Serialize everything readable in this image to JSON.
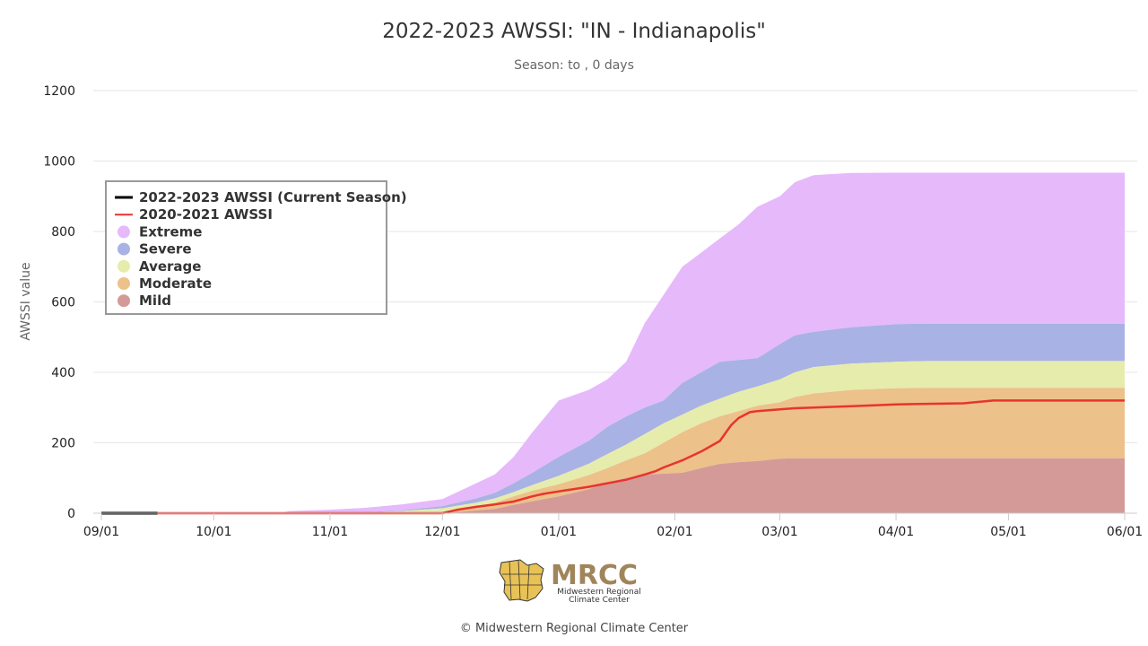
{
  "chart_data": {
    "type": "area",
    "title": "2022-2023 AWSSI: \"IN - Indianapolis\"",
    "subtitle": "Season: to , 0 days",
    "ylabel": "AWSSI value",
    "xlabel": "",
    "x_ticks": [
      "09/01",
      "10/01",
      "11/01",
      "12/01",
      "01/01",
      "02/01",
      "03/01",
      "04/01",
      "05/01",
      "06/01"
    ],
    "x_tick_days": [
      0,
      30,
      61,
      91,
      122,
      153,
      181,
      212,
      242,
      273
    ],
    "ylim": [
      0,
      1200
    ],
    "y_ticks": [
      0,
      200,
      400,
      600,
      800,
      1000,
      1200
    ],
    "grid": "horizontal",
    "legend_position": "top-left",
    "x_days": [
      0,
      10,
      20,
      30,
      40,
      48,
      50,
      55,
      61,
      70,
      80,
      91,
      100,
      105,
      110,
      115,
      122,
      130,
      135,
      140,
      145,
      150,
      155,
      160,
      165,
      170,
      175,
      181,
      185,
      190,
      200,
      212,
      220,
      230,
      242,
      250,
      260,
      273
    ],
    "bands": [
      {
        "name": "Mild",
        "color": "#d49a98",
        "values": [
          0,
          0,
          0,
          0,
          0,
          0,
          0,
          0,
          0,
          0,
          0,
          0,
          8,
          12,
          24,
          34,
          48,
          68,
          88,
          100,
          110,
          112,
          115,
          128,
          140,
          145,
          148,
          155,
          156,
          156,
          156,
          156,
          156,
          156,
          156,
          156,
          156,
          156
        ]
      },
      {
        "name": "Moderate",
        "color": "#ecc18a",
        "values": [
          0,
          0,
          0,
          0,
          0,
          0,
          0,
          0,
          0,
          0,
          0,
          0,
          20,
          30,
          48,
          64,
          82,
          108,
          128,
          150,
          170,
          200,
          230,
          255,
          275,
          290,
          305,
          315,
          330,
          340,
          350,
          355,
          356,
          356,
          356,
          356,
          356,
          356
        ]
      },
      {
        "name": "Average",
        "color": "#e6ecac",
        "values": [
          0,
          0,
          0,
          0,
          0,
          0,
          0,
          0,
          0,
          2,
          6,
          14,
          30,
          42,
          60,
          80,
          106,
          140,
          168,
          195,
          225,
          255,
          280,
          305,
          325,
          345,
          360,
          380,
          400,
          415,
          425,
          430,
          432,
          432,
          432,
          432,
          432,
          432
        ]
      },
      {
        "name": "Severe",
        "color": "#a9b2e4",
        "values": [
          0,
          0,
          0,
          0,
          0,
          0,
          0,
          0,
          0,
          3,
          8,
          20,
          42,
          58,
          85,
          115,
          160,
          205,
          245,
          275,
          300,
          320,
          370,
          400,
          430,
          435,
          440,
          480,
          505,
          515,
          528,
          537,
          538,
          538,
          538,
          538,
          538,
          538
        ]
      },
      {
        "name": "Extreme",
        "color": "#e6b9fb",
        "values": [
          0,
          0,
          0,
          0,
          0,
          0,
          6,
          8,
          10,
          15,
          25,
          40,
          85,
          110,
          160,
          230,
          320,
          350,
          380,
          430,
          540,
          620,
          700,
          740,
          780,
          820,
          870,
          900,
          940,
          960,
          966,
          967,
          967,
          967,
          967,
          967,
          967,
          967
        ]
      }
    ],
    "series": [
      {
        "name": "2022-2023 AWSSI (Current Season)",
        "color": "#000000",
        "x": [
          0,
          15
        ],
        "values": [
          0,
          0
        ]
      },
      {
        "name": "2020-2021 AWSSI",
        "color": "#e8342d",
        "x": [
          15,
          91,
          95,
          100,
          105,
          110,
          115,
          118,
          122,
          130,
          135,
          140,
          145,
          148,
          150,
          155,
          160,
          165,
          168,
          170,
          173,
          175,
          181,
          185,
          190,
          200,
          212,
          230,
          238,
          250,
          260,
          273
        ],
        "values": [
          0,
          0,
          10,
          18,
          25,
          33,
          48,
          55,
          62,
          75,
          85,
          95,
          110,
          120,
          130,
          150,
          175,
          205,
          250,
          270,
          287,
          290,
          295,
          298,
          300,
          304,
          309,
          312,
          320,
          320,
          320,
          320
        ]
      }
    ]
  },
  "legend": {
    "items": [
      {
        "label": "2022-2023 AWSSI (Current Season)",
        "kind": "line",
        "color": "#000000"
      },
      {
        "label": "2020-2021 AWSSI",
        "kind": "line",
        "color": "#e8342d"
      },
      {
        "label": "Extreme",
        "kind": "dot",
        "color": "#e6b9fb"
      },
      {
        "label": "Severe",
        "kind": "dot",
        "color": "#a9b2e4"
      },
      {
        "label": "Average",
        "kind": "dot",
        "color": "#e6ecac"
      },
      {
        "label": "Moderate",
        "kind": "dot",
        "color": "#ecc18a"
      },
      {
        "label": "Mild",
        "kind": "dot",
        "color": "#d49a98"
      }
    ]
  },
  "logo": {
    "wordmark": "MRCC",
    "line1": "Midwestern Regional",
    "line2": "Climate Center"
  },
  "credit": "© Midwestern Regional Climate Center"
}
